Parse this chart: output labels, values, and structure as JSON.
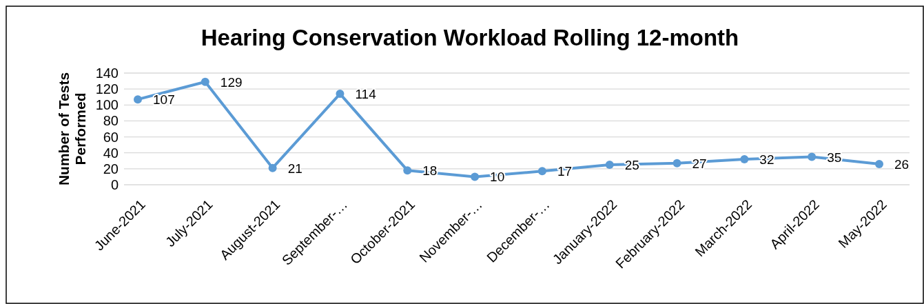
{
  "chart_data": {
    "type": "line",
    "title": "Hearing Conservation Workload Rolling 12-month",
    "ylabel": "Number of Tests Performed",
    "categories": [
      "June-2021",
      "July-2021",
      "August-2021",
      "September-…",
      "October-2021",
      "November-…",
      "December-…",
      "January-2022",
      "February-2022",
      "March-2022",
      "April-2022",
      "May-2022"
    ],
    "series": [
      {
        "color": "#5b9bd5",
        "values": [
          107,
          129,
          21,
          114,
          18,
          10,
          17,
          25,
          27,
          32,
          35,
          26
        ]
      }
    ],
    "ylim": [
      0,
      140
    ],
    "yticks": [
      0,
      20,
      40,
      60,
      80,
      100,
      120,
      140
    ],
    "grid": "y",
    "marker": "circle",
    "line_style": "solid",
    "data_labels": true
  }
}
